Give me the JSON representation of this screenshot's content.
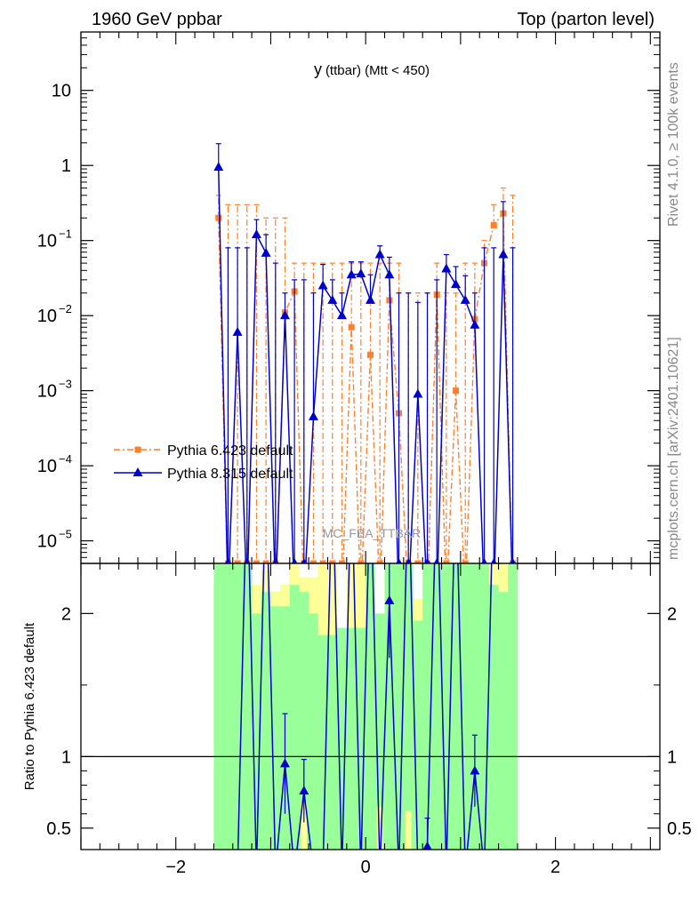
{
  "header": {
    "left": "1960 GeV ppbar",
    "right": "Top (parton level)",
    "side_top": "Rivet 4.1.0, ≥ 100k events",
    "side_bottom": "mcplots.cern.ch [arXiv:2401.10621]"
  },
  "chart_data": [
    {
      "type": "line",
      "panel": "main",
      "title": "y (ttbar) (Mtt < 450)",
      "title_main": "y",
      "title_sub": "(ttbar) (Mtt < 450)",
      "watermark": "MC_FBA_TTBAR",
      "xlabel": "",
      "ylabel": "",
      "xlim": [
        -3.0,
        3.1
      ],
      "ylim": [
        5e-06,
        60
      ],
      "yscale": "log",
      "y_ticks": [
        {
          "value": 1e-05,
          "label": "10",
          "exp": "−5"
        },
        {
          "value": 0.0001,
          "label": "10",
          "exp": "−4"
        },
        {
          "value": 0.001,
          "label": "10",
          "exp": "−3"
        },
        {
          "value": 0.01,
          "label": "10",
          "exp": "−2"
        },
        {
          "value": 0.1,
          "label": "10",
          "exp": "−1"
        },
        {
          "value": 1,
          "label": "1",
          "exp": ""
        },
        {
          "value": 10,
          "label": "10",
          "exp": ""
        }
      ],
      "legend_position": "middle-left",
      "series": [
        {
          "name": "Pythia 6.423 default",
          "color": "#ff7f2a",
          "marker": "square",
          "line_style": "dash-dot",
          "x": [
            -1.55,
            -1.45,
            -1.35,
            -1.25,
            -1.15,
            -1.05,
            -0.95,
            -0.85,
            -0.75,
            -0.65,
            -0.55,
            -0.45,
            -0.35,
            -0.25,
            -0.15,
            -0.05,
            0.05,
            0.15,
            0.25,
            0.35,
            0.45,
            0.55,
            0.65,
            0.75,
            0.85,
            0.95,
            1.05,
            1.15,
            1.25,
            1.35,
            1.45,
            1.55
          ],
          "values": [
            0.2,
            0,
            0,
            0,
            0,
            0,
            0,
            0.011,
            0.021,
            0,
            0,
            0,
            0,
            0,
            0.007,
            0,
            0.003,
            0,
            0.016,
            0.0005,
            0,
            0,
            0,
            0.019,
            0,
            0.001,
            0,
            0.009,
            0.05,
            0.16,
            0.23,
            0
          ],
          "err_up": [
            0.4,
            0.3,
            0.3,
            0.3,
            0.3,
            0.2,
            0.2,
            0.2,
            0.05,
            0.05,
            0.05,
            0.05,
            0.05,
            0.05,
            0.05,
            0.05,
            0.05,
            0.05,
            0.05,
            0.05,
            0.02,
            0.02,
            0.02,
            0.05,
            0.02,
            0.02,
            0.05,
            0.05,
            0.1,
            0.3,
            0.5,
            0.4
          ]
        },
        {
          "name": "Pythia 8.315 default",
          "color": "#0000cc",
          "marker": "triangle",
          "line_style": "solid",
          "x": [
            -1.55,
            -1.45,
            -1.35,
            -1.25,
            -1.15,
            -1.05,
            -0.95,
            -0.85,
            -0.75,
            -0.65,
            -0.55,
            -0.45,
            -0.35,
            -0.25,
            -0.15,
            -0.05,
            0.05,
            0.15,
            0.25,
            0.35,
            0.45,
            0.55,
            0.65,
            0.75,
            0.85,
            0.95,
            1.05,
            1.15,
            1.25,
            1.35,
            1.45,
            1.55
          ],
          "values": [
            0.95,
            0,
            0.006,
            0,
            0.12,
            0.068,
            0,
            0.01,
            0,
            0,
            0.00045,
            0.025,
            0.016,
            0.01,
            0.035,
            0.036,
            0.016,
            0.065,
            0.035,
            0,
            0,
            0.0009,
            0,
            0,
            0.042,
            0.026,
            0.016,
            0.0075,
            0,
            0,
            0.065,
            0
          ],
          "err_up": [
            1.95,
            0.08,
            0.08,
            0.08,
            0.19,
            0.12,
            0.05,
            0.02,
            0.03,
            0.03,
            0.02,
            0.048,
            0.03,
            0.02,
            0.052,
            0.052,
            0.035,
            0.085,
            0.06,
            0.02,
            0.02,
            0.015,
            0.02,
            0.03,
            0.065,
            0.045,
            0.034,
            0.02,
            0.08,
            0.08,
            0.33,
            0.08
          ]
        }
      ]
    },
    {
      "type": "line",
      "panel": "ratio",
      "ylabel": "Ratio to Pythia 6.423 default",
      "xlabel": "",
      "xlim": [
        -3.0,
        3.1
      ],
      "ylim": [
        0.35,
        2.35
      ],
      "y_ticks": [
        0.5,
        1,
        2
      ],
      "y_tick_labels": [
        "0.5",
        "1",
        "2"
      ],
      "x_ticks": [
        -2,
        0,
        2
      ],
      "x_tick_labels": [
        "−2",
        "0",
        "2"
      ],
      "band_colors": {
        "inner": "#ffff99",
        "outer": "#99ff99",
        "blank": "#ffffff"
      },
      "band_x_range": [
        -1.6,
        1.6
      ],
      "bins": [
        -1.6,
        -1.5,
        -1.4,
        -1.3,
        -1.2,
        -1.1,
        -1.0,
        -0.9,
        -0.8,
        -0.7,
        -0.6,
        -0.5,
        -0.4,
        -0.3,
        -0.2,
        -0.1,
        0.0,
        0.1,
        0.2,
        0.3,
        0.4,
        0.5,
        0.6,
        0.7,
        0.8,
        0.9,
        1.0,
        1.1,
        1.2,
        1.3,
        1.4,
        1.5,
        1.6
      ],
      "band_yellow_top": [
        2.35,
        2.35,
        2.35,
        2.35,
        2.0,
        2.15,
        2.05,
        2.05,
        2.2,
        2.15,
        2.0,
        1.85,
        1.85,
        1.9,
        1.9,
        1.9,
        2.35,
        2.3,
        2.35,
        2.35,
        2.35,
        1.95,
        2.35,
        2.35,
        2.35,
        2.35,
        2.35,
        2.35,
        2.35,
        2.2,
        2.15,
        2.35
      ],
      "band_green_top": [
        2.35,
        2.35,
        2.35,
        2.35,
        2.2,
        2.3,
        2.15,
        2.2,
        2.35,
        2.25,
        2.25,
        2.35,
        2.35,
        2.25,
        2.35,
        2.35,
        2.35,
        2.35,
        2.35,
        2.35,
        2.35,
        2.1,
        2.35,
        2.35,
        2.35,
        2.35,
        2.35,
        2.35,
        2.35,
        2.35,
        2.35,
        2.35
      ],
      "white_gaps": [
        {
          "x0": -0.3,
          "x1": -0.2,
          "y0": 1.9,
          "y1": 2.35
        },
        {
          "x0": 0.1,
          "x1": 0.2,
          "y0": 2.0,
          "y1": 2.35
        }
      ],
      "yellow_patches": [
        {
          "x0": -0.7,
          "x1": -0.6,
          "y0": 0.35,
          "y1": 0.68
        },
        {
          "x0": 0.1,
          "x1": 0.2,
          "y0": 0.35,
          "y1": 0.65
        },
        {
          "x0": 0.4,
          "x1": 0.5,
          "y0": 0.35,
          "y1": 0.62
        }
      ],
      "series": [
        {
          "name": "Pythia 8.315 default",
          "color": "#0000cc",
          "x": [
            -1.35,
            -1.25,
            -1.15,
            -1.05,
            -0.95,
            -0.85,
            -0.75,
            -0.65,
            -0.55,
            -0.45,
            -0.35,
            -0.25,
            -0.15,
            -0.05,
            0.05,
            0.15,
            0.25,
            0.35,
            0.45,
            0.55,
            0.65,
            0.75,
            0.85,
            0.95,
            1.05,
            1.15,
            1.25,
            1.35
          ],
          "values": [
            0.2,
            3,
            0.2,
            3,
            0.2,
            0.95,
            0.2,
            0.76,
            0.2,
            0.2,
            3,
            0.2,
            3,
            0.2,
            3,
            0.2,
            2.09,
            0.2,
            3,
            0.2,
            0.37,
            3,
            0.2,
            3,
            0.2,
            0.9,
            0.2,
            3
          ],
          "markers": [
            false,
            false,
            false,
            false,
            false,
            true,
            false,
            true,
            false,
            false,
            false,
            false,
            false,
            false,
            false,
            false,
            true,
            false,
            false,
            false,
            true,
            false,
            false,
            false,
            false,
            true,
            false,
            false
          ],
          "err": [
            0,
            0,
            0,
            0,
            0,
            0.35,
            0,
            0.22,
            0,
            0,
            0,
            0,
            0,
            0,
            0,
            0,
            0.4,
            0,
            0,
            0,
            0.2,
            0,
            0,
            0,
            0,
            0.25,
            0,
            0
          ]
        }
      ]
    }
  ]
}
